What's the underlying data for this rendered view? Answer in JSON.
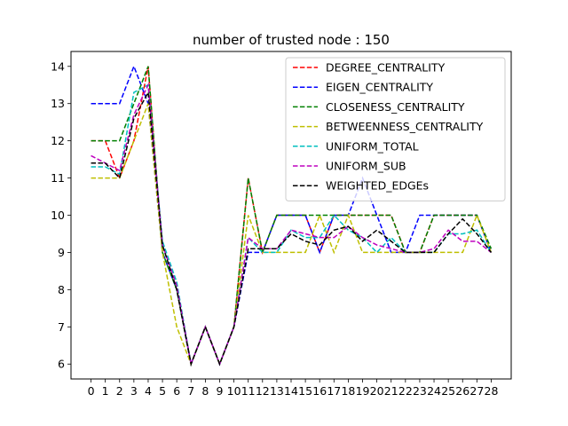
{
  "chart_data": {
    "type": "line",
    "title": "number of trusted node : 150",
    "xlabel": "",
    "ylabel": "",
    "x": [
      0,
      1,
      2,
      3,
      4,
      5,
      6,
      7,
      8,
      9,
      10,
      11,
      12,
      13,
      14,
      15,
      16,
      17,
      18,
      19,
      20,
      21,
      22,
      23,
      24,
      25,
      26,
      27,
      28
    ],
    "x_tick_labels": [
      "0",
      "1",
      "2",
      "3",
      "4",
      "5",
      "6",
      "7",
      "8",
      "9",
      "10",
      "11",
      "12",
      "13",
      "14",
      "15",
      "16",
      "17",
      "18",
      "19",
      "20",
      "21",
      "22",
      "23",
      "24",
      "25",
      "26",
      "27",
      "28"
    ],
    "xlim": [
      -1.4,
      29.4
    ],
    "ylim": [
      5.6,
      14.4
    ],
    "y_ticks": [
      6,
      7,
      8,
      9,
      10,
      11,
      12,
      13,
      14
    ],
    "y_tick_labels": [
      "6",
      "7",
      "8",
      "9",
      "10",
      "11",
      "12",
      "13",
      "14"
    ],
    "grid": false,
    "legend_position": "top-right",
    "line_style": "dashed",
    "series": [
      {
        "name": "DEGREE_CENTRALITY",
        "color": "#ff0000",
        "values": [
          12,
          12,
          11,
          12,
          14,
          9,
          8,
          6,
          7,
          6,
          7,
          11,
          9,
          10,
          10,
          10,
          9,
          10,
          10,
          10,
          10,
          10,
          9,
          9,
          10,
          10,
          10,
          10,
          9
        ]
      },
      {
        "name": "EIGEN_CENTRALITY",
        "color": "#0000ff",
        "values": [
          13,
          13,
          13,
          14,
          13,
          9,
          8,
          6,
          7,
          6,
          7,
          9,
          9,
          10,
          10,
          10,
          9,
          10,
          10,
          11,
          10,
          9,
          9,
          10,
          10,
          10,
          10,
          10,
          9
        ]
      },
      {
        "name": "CLOSENESS_CENTRALITY",
        "color": "#008000",
        "values": [
          12,
          12,
          12,
          13,
          14,
          9,
          8,
          6,
          7,
          6,
          7,
          11,
          9,
          10,
          10,
          10,
          10,
          10,
          10,
          10,
          10,
          10,
          9,
          9,
          10,
          10,
          10,
          10,
          9.1
        ]
      },
      {
        "name": "BETWEENNESS_CENTRALITY",
        "color": "#bfbf00",
        "values": [
          11,
          11,
          11,
          12,
          13,
          9,
          7,
          6,
          7,
          6,
          7,
          10,
          9,
          9,
          9,
          9,
          10,
          9,
          10,
          9,
          9,
          9,
          9,
          9,
          9,
          9,
          9,
          10,
          9
        ]
      },
      {
        "name": "UNIFORM_TOTAL",
        "color": "#00bfbf",
        "values": [
          11.3,
          11.3,
          11.1,
          13.3,
          13.5,
          9.3,
          8.2,
          6,
          7,
          6,
          7,
          9.4,
          9,
          9,
          9.6,
          9.4,
          9.4,
          10,
          9.6,
          9.4,
          9,
          9.4,
          9,
          9,
          9,
          9.5,
          9.5,
          9.6,
          9
        ]
      },
      {
        "name": "UNIFORM_SUB",
        "color": "#bf00bf",
        "values": [
          11.6,
          11.4,
          11.2,
          12.7,
          13.5,
          9.2,
          8.1,
          6,
          7,
          6,
          7,
          9.4,
          9.1,
          9.1,
          9.6,
          9.5,
          9.4,
          9.4,
          9.7,
          9.4,
          9.2,
          9.1,
          9,
          9,
          9.1,
          9.6,
          9.3,
          9.3,
          9
        ]
      },
      {
        "name": "WEIGHTED_EDGEs",
        "color": "#000000",
        "values": [
          11.4,
          11.4,
          11,
          12.6,
          13.3,
          9.2,
          8,
          6,
          7,
          6,
          7,
          9.1,
          9.1,
          9.1,
          9.5,
          9.3,
          9.2,
          9.6,
          9.7,
          9.3,
          9.6,
          9.3,
          9,
          9,
          9,
          9.5,
          9.9,
          9.5,
          9
        ]
      }
    ]
  }
}
